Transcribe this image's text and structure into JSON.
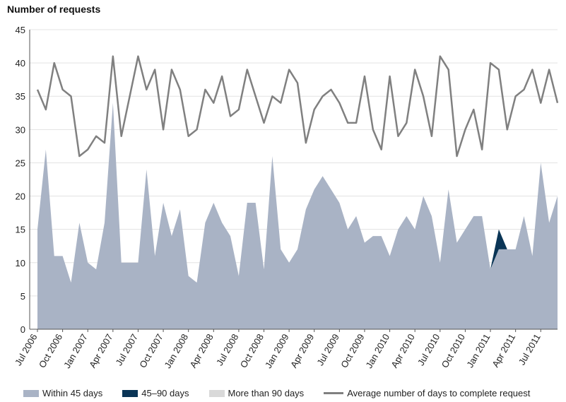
{
  "chart_data": {
    "type": "area",
    "title": "",
    "ylabel": "Number of requests",
    "xlabel": "",
    "ylim": [
      0,
      45
    ],
    "yticks": [
      0,
      5,
      10,
      15,
      20,
      25,
      30,
      35,
      40,
      45
    ],
    "grid": true,
    "months": [
      "Jul 2006",
      "Aug 2006",
      "Sep 2006",
      "Oct 2006",
      "Nov 2006",
      "Dec 2006",
      "Jan 2007",
      "Feb 2007",
      "Mar 2007",
      "Apr 2007",
      "May 2007",
      "Jun 2007",
      "Jul 2007",
      "Aug 2007",
      "Sep 2007",
      "Oct 2007",
      "Nov 2007",
      "Dec 2007",
      "Jan 2008",
      "Feb 2008",
      "Mar 2008",
      "Apr 2008",
      "May 2008",
      "Jun 2008",
      "Jul 2008",
      "Aug 2008",
      "Sep 2008",
      "Oct 2008",
      "Nov 2008",
      "Dec 2008",
      "Jan 2009",
      "Feb 2009",
      "Mar 2009",
      "Apr 2009",
      "May 2009",
      "Jun 2009",
      "Jul 2009",
      "Aug 2009",
      "Sep 2009",
      "Oct 2009",
      "Nov 2009",
      "Dec 2009",
      "Jan 2010",
      "Feb 2010",
      "Mar 2010",
      "Apr 2010",
      "May 2010",
      "Jun 2010",
      "Jul 2010",
      "Aug 2010",
      "Sep 2010",
      "Oct 2010",
      "Nov 2010",
      "Dec 2010",
      "Jan 2011",
      "Feb 2011",
      "Mar 2011",
      "Apr 2011",
      "May 2011",
      "Jun 2011",
      "Jul 2011",
      "Aug 2011",
      "Sep 2011"
    ],
    "x_tick_labels": [
      "Jul 2006",
      "Oct 2006",
      "Jan 2007",
      "Apr 2007",
      "Jul 2007",
      "Oct 2007",
      "Jan 2008",
      "Apr 2008",
      "Jul 2008",
      "Oct 2008",
      "Jan 2009",
      "Apr 2009",
      "Jul 2009",
      "Oct 2009",
      "Jan 2010",
      "Apr 2010",
      "Jul 2010",
      "Oct 2010",
      "Jan 2011",
      "Apr 2011",
      "Jul 2011"
    ],
    "series": [
      {
        "name": "Within 45 days",
        "kind": "area",
        "color": "#a9b3c5",
        "values": [
          15,
          27,
          11,
          11,
          7,
          16,
          10,
          9,
          16,
          34,
          10,
          10,
          10,
          24,
          11,
          19,
          14,
          18,
          8,
          7,
          16,
          19,
          16,
          14,
          8,
          19,
          19,
          9,
          26,
          12,
          10,
          12,
          18,
          21,
          23,
          21,
          19,
          15,
          17,
          13,
          14,
          14,
          11,
          15,
          17,
          15,
          20,
          17,
          10,
          21,
          13,
          15,
          17,
          17,
          9,
          12,
          12,
          12,
          17,
          11,
          25,
          16,
          20
        ]
      },
      {
        "name": "45–90 days",
        "kind": "area",
        "color": "#0a3556",
        "values": [
          0,
          0,
          0,
          0,
          0,
          0,
          0,
          0,
          0,
          0,
          0,
          0,
          0,
          0,
          0,
          0,
          0,
          0,
          0,
          0,
          0,
          0,
          0,
          0,
          0,
          0,
          0,
          0,
          0,
          0,
          0,
          0,
          0,
          0,
          0,
          0,
          0,
          0,
          0,
          0,
          0,
          0,
          0,
          0,
          0,
          0,
          0,
          0,
          0,
          0,
          0,
          0,
          0,
          0,
          0,
          3,
          0,
          0,
          0,
          0,
          0,
          0,
          0
        ]
      },
      {
        "name": "More than 90 days",
        "kind": "area",
        "color": "#d9d9d9",
        "values": [
          0,
          0,
          0,
          0,
          0,
          0,
          0,
          0,
          0,
          0,
          0,
          0,
          0,
          0,
          0,
          0,
          0,
          0,
          0,
          0,
          0,
          0,
          0,
          0,
          0,
          0,
          0,
          0,
          0,
          0,
          0,
          0,
          0,
          0,
          0,
          0,
          0,
          0,
          0,
          0,
          0,
          0,
          0,
          0,
          0,
          0,
          0,
          0,
          0,
          0,
          0,
          0,
          0,
          0,
          0,
          0,
          0,
          0,
          0,
          0,
          0,
          0,
          0
        ]
      },
      {
        "name": "Average number of days to complete request",
        "kind": "line",
        "color": "#808080",
        "values": [
          36,
          33,
          40,
          36,
          35,
          26,
          27,
          29,
          28,
          41,
          29,
          35,
          41,
          36,
          39,
          30,
          39,
          36,
          29,
          30,
          36,
          34,
          38,
          32,
          33,
          39,
          35,
          31,
          35,
          34,
          39,
          37,
          28,
          33,
          35,
          36,
          34,
          31,
          31,
          38,
          30,
          27,
          38,
          29,
          31,
          39,
          35,
          29,
          41,
          39,
          26,
          30,
          33,
          27,
          40,
          39,
          30,
          35,
          36,
          39,
          34,
          39,
          34
        ]
      }
    ],
    "legend": {
      "position": "bottom",
      "items": [
        "Within 45 days",
        "45–90 days",
        "More than 90 days",
        "Average number of days to complete request"
      ]
    }
  }
}
